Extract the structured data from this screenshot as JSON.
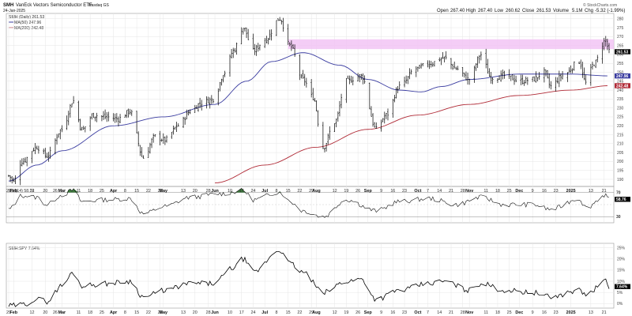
{
  "header": {
    "symbol": "SMH",
    "name": "VanEck Vectors Semiconductor ETF",
    "exchange": "Nasdaq GS",
    "date": "24-Jan-2025",
    "source": "© StockCharts.com",
    "open_label": "Open",
    "open": "267.40",
    "high_label": "High",
    "high": "267.40",
    "low_label": "Low",
    "low": "260.62",
    "close_label": "Close",
    "close": "261.53",
    "volume_label": "Volume",
    "volume": "5.1M",
    "chg_label": "Chg",
    "chg": "-5.32 (-1.99%)"
  },
  "colors": {
    "price": "#000000",
    "ma50": "#3a3ca0",
    "ma200": "#b02a36",
    "zone": "#f2c4f4",
    "rsi_fill": "#3d7a3d",
    "ratio": "#000000"
  },
  "chart_data": [
    {
      "type": "ohlc",
      "panel": "price",
      "legend": [
        "SMH (Daily) 261.53",
        "MA(50) 247.96",
        "MA(200) 242.48"
      ],
      "ylim": [
        186,
        283
      ],
      "yticks": [
        190,
        195,
        200,
        205,
        210,
        215,
        220,
        225,
        230,
        235,
        240,
        245,
        250,
        255,
        260,
        265,
        270,
        275,
        280
      ],
      "last_price": 261.53,
      "tags": [
        {
          "label": "261.53",
          "value": 261.53
        },
        {
          "label": "247.96",
          "value": 247.96
        },
        {
          "label": "242.48",
          "value": 242.48
        }
      ],
      "resistance_zone": {
        "low": 263,
        "high": 268.5,
        "from": "2024-07-15",
        "to": "2025-01-24"
      },
      "price_anchors": [
        [
          "2024-01-29",
          192
        ],
        [
          "2024-02-01",
          189
        ],
        [
          "2024-02-06",
          200
        ],
        [
          "2024-02-15",
          208
        ],
        [
          "2024-02-21",
          203
        ],
        [
          "2024-03-01",
          218
        ],
        [
          "2024-03-08",
          234
        ],
        [
          "2024-03-13",
          218
        ],
        [
          "2024-03-20",
          226
        ],
        [
          "2024-03-27",
          225
        ],
        [
          "2024-04-04",
          224
        ],
        [
          "2024-04-11",
          228
        ],
        [
          "2024-04-19",
          202
        ],
        [
          "2024-04-26",
          214
        ],
        [
          "2024-05-02",
          212
        ],
        [
          "2024-05-10",
          220
        ],
        [
          "2024-05-17",
          228
        ],
        [
          "2024-05-24",
          233
        ],
        [
          "2024-05-31",
          235
        ],
        [
          "2024-06-07",
          250
        ],
        [
          "2024-06-12",
          262
        ],
        [
          "2024-06-18",
          275
        ],
        [
          "2024-06-24",
          262
        ],
        [
          "2024-07-01",
          268
        ],
        [
          "2024-07-10",
          280
        ],
        [
          "2024-07-16",
          265
        ],
        [
          "2024-07-24",
          246
        ],
        [
          "2024-07-30",
          236
        ],
        [
          "2024-08-05",
          208
        ],
        [
          "2024-08-12",
          222
        ],
        [
          "2024-08-19",
          245
        ],
        [
          "2024-08-28",
          248
        ],
        [
          "2024-09-06",
          218
        ],
        [
          "2024-09-12",
          226
        ],
        [
          "2024-09-20",
          242
        ],
        [
          "2024-09-30",
          252
        ],
        [
          "2024-10-08",
          255
        ],
        [
          "2024-10-17",
          258
        ],
        [
          "2024-10-24",
          252
        ],
        [
          "2024-11-01",
          246
        ],
        [
          "2024-11-08",
          260
        ],
        [
          "2024-11-14",
          247
        ],
        [
          "2024-11-22",
          248
        ],
        [
          "2024-12-02",
          245
        ],
        [
          "2024-12-09",
          246
        ],
        [
          "2024-12-16",
          250
        ],
        [
          "2024-12-20",
          242
        ],
        [
          "2024-12-27",
          248
        ],
        [
          "2025-01-06",
          256
        ],
        [
          "2025-01-10",
          244
        ],
        [
          "2025-01-15",
          255
        ],
        [
          "2025-01-22",
          268
        ],
        [
          "2025-01-24",
          261.5
        ]
      ],
      "ma50": [
        [
          "2024-01-29",
          189
        ],
        [
          "2024-02-15",
          198
        ],
        [
          "2024-03-01",
          206
        ],
        [
          "2024-04-01",
          220
        ],
        [
          "2024-05-01",
          225
        ],
        [
          "2024-06-01",
          232
        ],
        [
          "2024-06-20",
          245
        ],
        [
          "2024-07-05",
          256
        ],
        [
          "2024-07-24",
          261
        ],
        [
          "2024-08-15",
          254
        ],
        [
          "2024-09-01",
          246
        ],
        [
          "2024-09-20",
          240
        ],
        [
          "2024-10-03",
          239
        ],
        [
          "2024-10-15",
          242
        ],
        [
          "2024-11-01",
          246
        ],
        [
          "2024-12-01",
          249
        ],
        [
          "2025-01-01",
          249
        ],
        [
          "2025-01-24",
          247.96
        ]
      ],
      "ma200": [
        [
          "2024-06-01",
          188
        ],
        [
          "2024-07-01",
          198
        ],
        [
          "2024-08-01",
          208
        ],
        [
          "2024-09-01",
          218
        ],
        [
          "2024-10-01",
          226
        ],
        [
          "2024-11-01",
          232
        ],
        [
          "2024-12-01",
          237
        ],
        [
          "2025-01-01",
          240
        ],
        [
          "2025-01-24",
          242.48
        ]
      ]
    },
    {
      "type": "line",
      "panel": "rsi",
      "legend": "RSI(14) 58.76",
      "ylim": [
        20,
        80
      ],
      "upper_band": 70,
      "lower_band": 30,
      "tags": [
        {
          "label": "58.76",
          "value": 58.76
        },
        {
          "label": "70",
          "value": 70
        },
        {
          "label": "30",
          "value": 30
        }
      ],
      "values": [
        [
          "2024-01-29",
          42
        ],
        [
          "2024-02-06",
          65
        ],
        [
          "2024-02-15",
          62
        ],
        [
          "2024-02-21",
          50
        ],
        [
          "2024-03-01",
          66
        ],
        [
          "2024-03-08",
          74
        ],
        [
          "2024-03-13",
          55
        ],
        [
          "2024-03-27",
          58
        ],
        [
          "2024-04-11",
          60
        ],
        [
          "2024-04-19",
          35
        ],
        [
          "2024-05-02",
          47
        ],
        [
          "2024-05-17",
          62
        ],
        [
          "2024-06-05",
          68
        ],
        [
          "2024-06-18",
          73
        ],
        [
          "2024-06-24",
          58
        ],
        [
          "2024-07-10",
          71
        ],
        [
          "2024-07-16",
          55
        ],
        [
          "2024-07-24",
          40
        ],
        [
          "2024-08-05",
          30
        ],
        [
          "2024-08-19",
          58
        ],
        [
          "2024-09-06",
          40
        ],
        [
          "2024-09-20",
          55
        ],
        [
          "2024-10-08",
          60
        ],
        [
          "2024-10-24",
          50
        ],
        [
          "2024-11-08",
          62
        ],
        [
          "2024-11-22",
          50
        ],
        [
          "2024-12-09",
          50
        ],
        [
          "2024-12-20",
          42
        ],
        [
          "2025-01-06",
          60
        ],
        [
          "2025-01-10",
          45
        ],
        [
          "2025-01-22",
          66
        ],
        [
          "2025-01-24",
          58.76
        ]
      ]
    },
    {
      "type": "line",
      "panel": "ratio",
      "legend": "SMH:SPY 7.64%",
      "ylim": [
        -2,
        27
      ],
      "yticks": [
        0,
        5,
        10,
        15,
        20,
        25
      ],
      "tick_suffix": "%",
      "tags": [
        {
          "label": "7.64%",
          "value": 7.64
        }
      ],
      "values": [
        [
          "2024-01-29",
          -1
        ],
        [
          "2024-02-06",
          -0.5
        ],
        [
          "2024-02-15",
          2
        ],
        [
          "2024-02-21",
          1
        ],
        [
          "2024-03-01",
          8
        ],
        [
          "2024-03-08",
          14
        ],
        [
          "2024-03-13",
          8
        ],
        [
          "2024-03-27",
          9
        ],
        [
          "2024-04-11",
          10
        ],
        [
          "2024-04-19",
          3
        ],
        [
          "2024-05-02",
          6
        ],
        [
          "2024-05-17",
          9
        ],
        [
          "2024-05-31",
          9
        ],
        [
          "2024-06-12",
          16
        ],
        [
          "2024-06-18",
          20
        ],
        [
          "2024-06-24",
          14
        ],
        [
          "2024-07-10",
          24
        ],
        [
          "2024-07-16",
          18
        ],
        [
          "2024-07-24",
          14
        ],
        [
          "2024-08-05",
          5
        ],
        [
          "2024-08-19",
          10
        ],
        [
          "2024-08-28",
          11
        ],
        [
          "2024-09-06",
          2
        ],
        [
          "2024-09-20",
          6
        ],
        [
          "2024-10-08",
          9
        ],
        [
          "2024-10-17",
          10
        ],
        [
          "2024-11-01",
          6
        ],
        [
          "2024-11-08",
          9
        ],
        [
          "2024-11-22",
          6
        ],
        [
          "2024-12-09",
          5
        ],
        [
          "2024-12-20",
          3
        ],
        [
          "2025-01-06",
          6
        ],
        [
          "2025-01-10",
          4
        ],
        [
          "2025-01-22",
          10
        ],
        [
          "2025-01-24",
          7.64
        ]
      ]
    }
  ],
  "x_axis": {
    "start": "2024-01-29",
    "end": "2025-01-24",
    "ticks": [
      {
        "label": "29",
        "date": "2024-01-29",
        "bold": false
      },
      {
        "label": "Feb",
        "date": "2024-02-01",
        "bold": true
      },
      {
        "label": "12",
        "date": "2024-02-12",
        "bold": false
      },
      {
        "label": "20",
        "date": "2024-02-20",
        "bold": false
      },
      {
        "label": "26",
        "date": "2024-02-26",
        "bold": false
      },
      {
        "label": "Mar",
        "date": "2024-03-01",
        "bold": true
      },
      {
        "label": "11",
        "date": "2024-03-11",
        "bold": false
      },
      {
        "label": "18",
        "date": "2024-03-18",
        "bold": false
      },
      {
        "label": "25",
        "date": "2024-03-25",
        "bold": false
      },
      {
        "label": "Apr",
        "date": "2024-04-01",
        "bold": true
      },
      {
        "label": "8",
        "date": "2024-04-08",
        "bold": false
      },
      {
        "label": "15",
        "date": "2024-04-15",
        "bold": false
      },
      {
        "label": "22",
        "date": "2024-04-22",
        "bold": false
      },
      {
        "label": "29",
        "date": "2024-04-29",
        "bold": false
      },
      {
        "label": "May",
        "date": "2024-05-01",
        "bold": true
      },
      {
        "label": "13",
        "date": "2024-05-13",
        "bold": false
      },
      {
        "label": "20",
        "date": "2024-05-20",
        "bold": false
      },
      {
        "label": "28",
        "date": "2024-05-28",
        "bold": false
      },
      {
        "label": "Jun",
        "date": "2024-06-01",
        "bold": true
      },
      {
        "label": "10",
        "date": "2024-06-10",
        "bold": false
      },
      {
        "label": "17",
        "date": "2024-06-17",
        "bold": false
      },
      {
        "label": "24",
        "date": "2024-06-24",
        "bold": false
      },
      {
        "label": "Jul",
        "date": "2024-07-01",
        "bold": true
      },
      {
        "label": "8",
        "date": "2024-07-08",
        "bold": false
      },
      {
        "label": "15",
        "date": "2024-07-15",
        "bold": false
      },
      {
        "label": "22",
        "date": "2024-07-22",
        "bold": false
      },
      {
        "label": "29",
        "date": "2024-07-29",
        "bold": false
      },
      {
        "label": "Aug",
        "date": "2024-08-01",
        "bold": true
      },
      {
        "label": "12",
        "date": "2024-08-12",
        "bold": false
      },
      {
        "label": "19",
        "date": "2024-08-19",
        "bold": false
      },
      {
        "label": "26",
        "date": "2024-08-26",
        "bold": false
      },
      {
        "label": "Sep",
        "date": "2024-09-01",
        "bold": true
      },
      {
        "label": "9",
        "date": "2024-09-09",
        "bold": false
      },
      {
        "label": "16",
        "date": "2024-09-16",
        "bold": false
      },
      {
        "label": "23",
        "date": "2024-09-23",
        "bold": false
      },
      {
        "label": "Oct",
        "date": "2024-10-01",
        "bold": true
      },
      {
        "label": "7",
        "date": "2024-10-07",
        "bold": false
      },
      {
        "label": "14",
        "date": "2024-10-14",
        "bold": false
      },
      {
        "label": "21",
        "date": "2024-10-21",
        "bold": false
      },
      {
        "label": "28",
        "date": "2024-10-28",
        "bold": false
      },
      {
        "label": "Nov",
        "date": "2024-11-01",
        "bold": true
      },
      {
        "label": "11",
        "date": "2024-11-11",
        "bold": false
      },
      {
        "label": "18",
        "date": "2024-11-18",
        "bold": false
      },
      {
        "label": "25",
        "date": "2024-11-25",
        "bold": false
      },
      {
        "label": "Dec",
        "date": "2024-12-01",
        "bold": true
      },
      {
        "label": "9",
        "date": "2024-12-09",
        "bold": false
      },
      {
        "label": "16",
        "date": "2024-12-16",
        "bold": false
      },
      {
        "label": "23",
        "date": "2024-12-23",
        "bold": false
      },
      {
        "label": "2025",
        "date": "2025-01-01",
        "bold": true
      },
      {
        "label": "13",
        "date": "2025-01-13",
        "bold": false
      },
      {
        "label": "21",
        "date": "2025-01-21",
        "bold": false
      }
    ]
  }
}
